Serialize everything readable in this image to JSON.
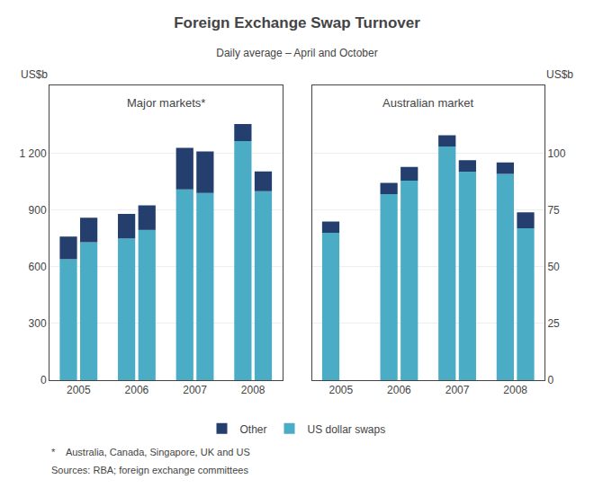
{
  "title": "Foreign Exchange Swap Turnover",
  "subtitle": "Daily average – April and October",
  "annotations": [
    "*    Australia, Canada, Singapore, UK and US",
    "Sources: RBA; foreign exchange committees"
  ],
  "legend": "bottom",
  "chart_data": [
    {
      "type": "bar",
      "stacked": true,
      "title": "Major markets*",
      "ylabel": "US$b",
      "categories": [
        "2005",
        "2006",
        "2007",
        "2008"
      ],
      "series": [
        {
          "name": "US dollar swaps",
          "color": "#4bacc6",
          "values": [
            [
              640,
              730
            ],
            [
              750,
              795
            ],
            [
              1010,
              990
            ],
            [
              1265,
              1000
            ]
          ]
        },
        {
          "name": "Other",
          "color": "#243f6e",
          "values": [
            [
              120,
              130
            ],
            [
              130,
              130
            ],
            [
              220,
              220
            ],
            [
              90,
              105
            ]
          ]
        }
      ],
      "ylim": [
        0,
        1560
      ],
      "yticks": [
        0,
        300,
        600,
        900,
        {
          "value": 1200,
          "label": "1 200"
        }
      ],
      "grid": true
    },
    {
      "type": "bar",
      "stacked": true,
      "title": "Australian market",
      "ylabel": "US$b",
      "categories": [
        "2005",
        "2006",
        "2007",
        "2008"
      ],
      "series": [
        {
          "name": "US dollar swaps",
          "color": "#4bacc6",
          "values": [
            [
              65,
              null
            ],
            [
              82,
              88
            ],
            [
              103,
              92
            ],
            [
              91,
              67
            ]
          ]
        },
        {
          "name": "Other",
          "color": "#243f6e",
          "values": [
            [
              5,
              null
            ],
            [
              5,
              6
            ],
            [
              5,
              5
            ],
            [
              5,
              7
            ]
          ]
        }
      ],
      "ylim": [
        0,
        130
      ],
      "yticks": [
        0,
        25,
        50,
        75,
        100
      ],
      "grid": true
    }
  ]
}
